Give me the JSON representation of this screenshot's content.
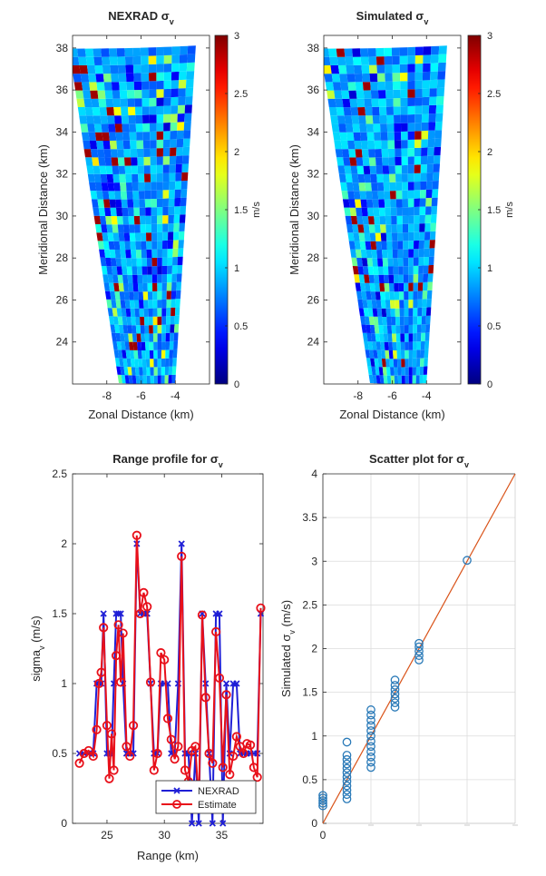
{
  "figure": {
    "title": "NEXRAD vs simulated sigma_v comparison"
  },
  "chart_data": [
    {
      "type": "heatmap",
      "title": "NEXRAD σ",
      "title_subscript": "v",
      "xlabel": "Zonal Distance (km)",
      "ylabel": "Meridional Distance (km)",
      "xticks": [
        "-8",
        "-6",
        "-4"
      ],
      "yticks": [
        "24",
        "26",
        "28",
        "30",
        "32",
        "34",
        "36",
        "38"
      ],
      "xlim": [
        -10,
        -2
      ],
      "ylim": [
        22,
        38.6
      ],
      "colorbar": {
        "label": "m/s",
        "ticks": [
          "0",
          "0.5",
          "1",
          "1.5",
          "2",
          "2.5",
          "3"
        ],
        "range": [
          0,
          3
        ],
        "colormap": "jet"
      },
      "sector": {
        "rows": 40,
        "cols": 16,
        "near_left": -7.3,
        "near_right": -4.0,
        "far_left": -10.2,
        "far_right": -2.8,
        "y_near": 22.0,
        "y_far": 38.0
      },
      "grid_seed": 7
    },
    {
      "type": "heatmap",
      "title": "Simulated σ",
      "title_subscript": "v",
      "xlabel": "Zonal Distance (km)",
      "ylabel": "Meridional Distance (km)",
      "xticks": [
        "-8",
        "-6",
        "-4"
      ],
      "yticks": [
        "24",
        "26",
        "28",
        "30",
        "32",
        "34",
        "36",
        "38"
      ],
      "xlim": [
        -10,
        -2
      ],
      "ylim": [
        22,
        38.6
      ],
      "colorbar": {
        "label": "m/s",
        "ticks": [
          "0",
          "0.5",
          "1",
          "1.5",
          "2",
          "2.5",
          "3"
        ],
        "range": [
          0,
          3
        ],
        "colormap": "jet"
      },
      "sector": {
        "rows": 40,
        "cols": 16,
        "near_left": -7.3,
        "near_right": -4.0,
        "far_left": -10.2,
        "far_right": -2.8,
        "y_near": 22.0,
        "y_far": 38.0
      },
      "grid_seed": 19
    },
    {
      "type": "line",
      "title": "Range profile for σ",
      "title_subscript": "v",
      "xlabel": "Range (km)",
      "ylabel": "sigma",
      "ylabel_subscript": "v",
      "ylabel_suffix": " (m/s)",
      "xlim": [
        22,
        38.6
      ],
      "ylim": [
        0,
        2.5
      ],
      "xticks": [
        "25",
        "30",
        "35"
      ],
      "yticks": [
        "0",
        "0.5",
        "1",
        "1.5",
        "2",
        "2.5"
      ],
      "legend": {
        "position": "bottom-right",
        "entries": [
          "NEXRAD",
          "Estimate"
        ]
      },
      "series": [
        {
          "name": "NEXRAD",
          "color": "#1f1fd6",
          "marker": "x",
          "x": [
            22.6,
            23.0,
            23.4,
            23.8,
            24.1,
            24.3,
            24.5,
            24.7,
            25.0,
            25.2,
            25.4,
            25.6,
            25.8,
            26.0,
            26.2,
            26.4,
            26.7,
            27.0,
            27.3,
            27.6,
            27.9,
            28.2,
            28.5,
            28.8,
            29.1,
            29.4,
            29.7,
            30.0,
            30.3,
            30.6,
            30.9,
            31.2,
            31.5,
            31.8,
            32.1,
            32.4,
            32.7,
            33.0,
            33.3,
            33.6,
            33.9,
            34.2,
            34.5,
            34.8,
            35.1,
            35.4,
            35.7,
            36.0,
            36.3,
            36.6,
            36.9,
            37.2,
            37.5,
            37.8,
            38.1,
            38.4
          ],
          "y": [
            0.5,
            0.5,
            0.5,
            0.5,
            1.0,
            1.0,
            1.0,
            1.5,
            0.5,
            0.5,
            0.5,
            1.0,
            1.5,
            1.5,
            1.5,
            1.0,
            0.5,
            0.5,
            0.5,
            2.0,
            1.5,
            1.5,
            1.5,
            1.0,
            0.5,
            0.5,
            1.0,
            1.0,
            1.0,
            0.5,
            0.5,
            1.0,
            2.0,
            0.5,
            0.5,
            0.0,
            0.5,
            0.0,
            1.5,
            1.0,
            0.5,
            0.0,
            1.5,
            1.5,
            0.0,
            1.0,
            0.5,
            1.0,
            1.0,
            0.5,
            0.5,
            0.5,
            0.5,
            0.5,
            0.5,
            1.5
          ]
        },
        {
          "name": "Estimate",
          "color": "#e8101a",
          "marker": "o",
          "x": [
            22.6,
            23.0,
            23.4,
            23.8,
            24.1,
            24.3,
            24.5,
            24.7,
            25.0,
            25.2,
            25.4,
            25.6,
            25.8,
            26.0,
            26.2,
            26.4,
            26.7,
            27.0,
            27.3,
            27.6,
            27.9,
            28.2,
            28.5,
            28.8,
            29.1,
            29.4,
            29.7,
            30.0,
            30.3,
            30.6,
            30.9,
            31.2,
            31.5,
            31.8,
            32.1,
            32.4,
            32.7,
            33.0,
            33.3,
            33.6,
            33.9,
            34.2,
            34.5,
            34.8,
            35.1,
            35.4,
            35.7,
            36.0,
            36.3,
            36.6,
            36.9,
            37.2,
            37.5,
            37.8,
            38.1,
            38.4
          ],
          "y": [
            0.43,
            0.5,
            0.52,
            0.48,
            0.67,
            1.0,
            1.08,
            1.4,
            0.7,
            0.32,
            0.64,
            0.38,
            1.2,
            1.42,
            1.01,
            1.36,
            0.55,
            0.48,
            0.7,
            2.06,
            1.5,
            1.65,
            1.55,
            1.01,
            0.38,
            0.5,
            1.22,
            1.17,
            0.75,
            0.6,
            0.46,
            0.55,
            1.91,
            0.38,
            0.3,
            0.52,
            0.55,
            0.13,
            1.49,
            0.9,
            0.5,
            0.43,
            1.37,
            1.04,
            0.4,
            0.92,
            0.35,
            0.48,
            0.62,
            0.55,
            0.5,
            0.57,
            0.56,
            0.4,
            0.33,
            1.54
          ]
        }
      ]
    },
    {
      "type": "scatter",
      "title": "Scatter plot for σ",
      "title_subscript": "v",
      "xlabel": "",
      "ylabel": "Simulated σ",
      "ylabel_subscript": "v",
      "ylabel_suffix": " (m/s)",
      "xlim": [
        0,
        4
      ],
      "ylim": [
        0,
        4
      ],
      "xticks": [
        "0"
      ],
      "yticks": [
        "0",
        "0.5",
        "1",
        "1.5",
        "2",
        "2.5",
        "3",
        "3.5",
        "4"
      ],
      "grid": true,
      "marker_color": "#2a7ab8",
      "reference_line": {
        "from": [
          0,
          0
        ],
        "to": [
          4,
          4
        ],
        "color": "#d95319"
      },
      "points": [
        {
          "x": 0,
          "y": 0.2
        },
        {
          "x": 0,
          "y": 0.23
        },
        {
          "x": 0,
          "y": 0.26
        },
        {
          "x": 0,
          "y": 0.29
        },
        {
          "x": 0,
          "y": 0.32
        },
        {
          "x": 0.5,
          "y": 0.28
        },
        {
          "x": 0.5,
          "y": 0.33
        },
        {
          "x": 0.5,
          "y": 0.38
        },
        {
          "x": 0.5,
          "y": 0.43
        },
        {
          "x": 0.5,
          "y": 0.48
        },
        {
          "x": 0.5,
          "y": 0.53
        },
        {
          "x": 0.5,
          "y": 0.58
        },
        {
          "x": 0.5,
          "y": 0.63
        },
        {
          "x": 0.5,
          "y": 0.68
        },
        {
          "x": 0.5,
          "y": 0.73
        },
        {
          "x": 0.5,
          "y": 0.78
        },
        {
          "x": 0.5,
          "y": 0.93
        },
        {
          "x": 1,
          "y": 0.64
        },
        {
          "x": 1,
          "y": 0.7
        },
        {
          "x": 1,
          "y": 0.76
        },
        {
          "x": 1,
          "y": 0.82
        },
        {
          "x": 1,
          "y": 0.88
        },
        {
          "x": 1,
          "y": 0.94
        },
        {
          "x": 1,
          "y": 1.0
        },
        {
          "x": 1,
          "y": 1.06
        },
        {
          "x": 1,
          "y": 1.12
        },
        {
          "x": 1,
          "y": 1.18
        },
        {
          "x": 1,
          "y": 1.24
        },
        {
          "x": 1,
          "y": 1.3
        },
        {
          "x": 1.5,
          "y": 1.33
        },
        {
          "x": 1.5,
          "y": 1.38
        },
        {
          "x": 1.5,
          "y": 1.43
        },
        {
          "x": 1.5,
          "y": 1.48
        },
        {
          "x": 1.5,
          "y": 1.53
        },
        {
          "x": 1.5,
          "y": 1.58
        },
        {
          "x": 1.5,
          "y": 1.64
        },
        {
          "x": 2,
          "y": 1.87
        },
        {
          "x": 2,
          "y": 1.92
        },
        {
          "x": 2,
          "y": 1.97
        },
        {
          "x": 2,
          "y": 2.02
        },
        {
          "x": 2,
          "y": 2.06
        },
        {
          "x": 3,
          "y": 3.01
        }
      ]
    }
  ]
}
